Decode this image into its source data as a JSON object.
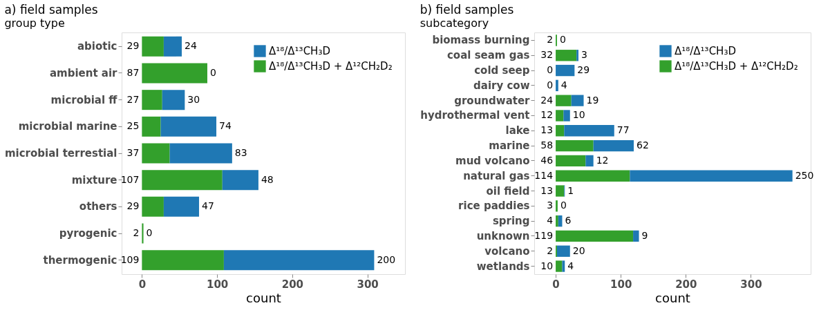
{
  "chart_data": [
    {
      "type": "bar",
      "orientation": "horizontal",
      "stacked": true,
      "title": "a) field samples",
      "ylabel": "group type",
      "xlabel": "count",
      "categories": [
        "abiotic",
        "ambient air",
        "microbial ff",
        "microbial marine",
        "microbial terrestial",
        "mixture",
        "others",
        "pyrogenic",
        "thermogenic"
      ],
      "series": [
        {
          "name": "Δ¹⁸/Δ¹³CH₃D + Δ¹²CH₂D₂",
          "color": "#33a02c",
          "values": [
            29,
            87,
            27,
            25,
            37,
            107,
            29,
            2,
            109
          ]
        },
        {
          "name": "Δ¹⁸/Δ¹³CH₃D",
          "color": "#1f78b4",
          "values": [
            24,
            0,
            30,
            74,
            83,
            48,
            47,
            0,
            200
          ]
        }
      ],
      "xlim": [
        -27,
        350
      ],
      "xticks": [
        0,
        100,
        200,
        300
      ],
      "data_labels": true,
      "legend": "top right",
      "grid": false
    },
    {
      "type": "bar",
      "orientation": "horizontal",
      "stacked": true,
      "title": "b) field samples",
      "ylabel": "subcategory",
      "xlabel": "count",
      "categories": [
        "biomass burning",
        "coal seam gas",
        "cold seep",
        "dairy cow",
        "groundwater",
        "hydrothermal vent",
        "lake",
        "marine",
        "mud volcano",
        "natural gas",
        "oil field",
        "rice paddies",
        "spring",
        "unknown",
        "volcano",
        "wetlands"
      ],
      "series": [
        {
          "name": "Δ¹⁸/Δ¹³CH₃D + Δ¹²CH₂D₂",
          "color": "#33a02c",
          "values": [
            2,
            32,
            0,
            0,
            24,
            12,
            13,
            58,
            46,
            114,
            13,
            3,
            4,
            119,
            2,
            10
          ]
        },
        {
          "name": "Δ¹⁸/Δ¹³CH₃D",
          "color": "#1f78b4",
          "values": [
            0,
            3,
            29,
            4,
            19,
            10,
            77,
            62,
            12,
            250,
            1,
            0,
            6,
            9,
            20,
            4
          ]
        }
      ],
      "xlim": [
        -33,
        392
      ],
      "xticks": [
        0,
        100,
        200,
        300
      ],
      "data_labels": true,
      "legend": "top right",
      "grid": false
    }
  ]
}
